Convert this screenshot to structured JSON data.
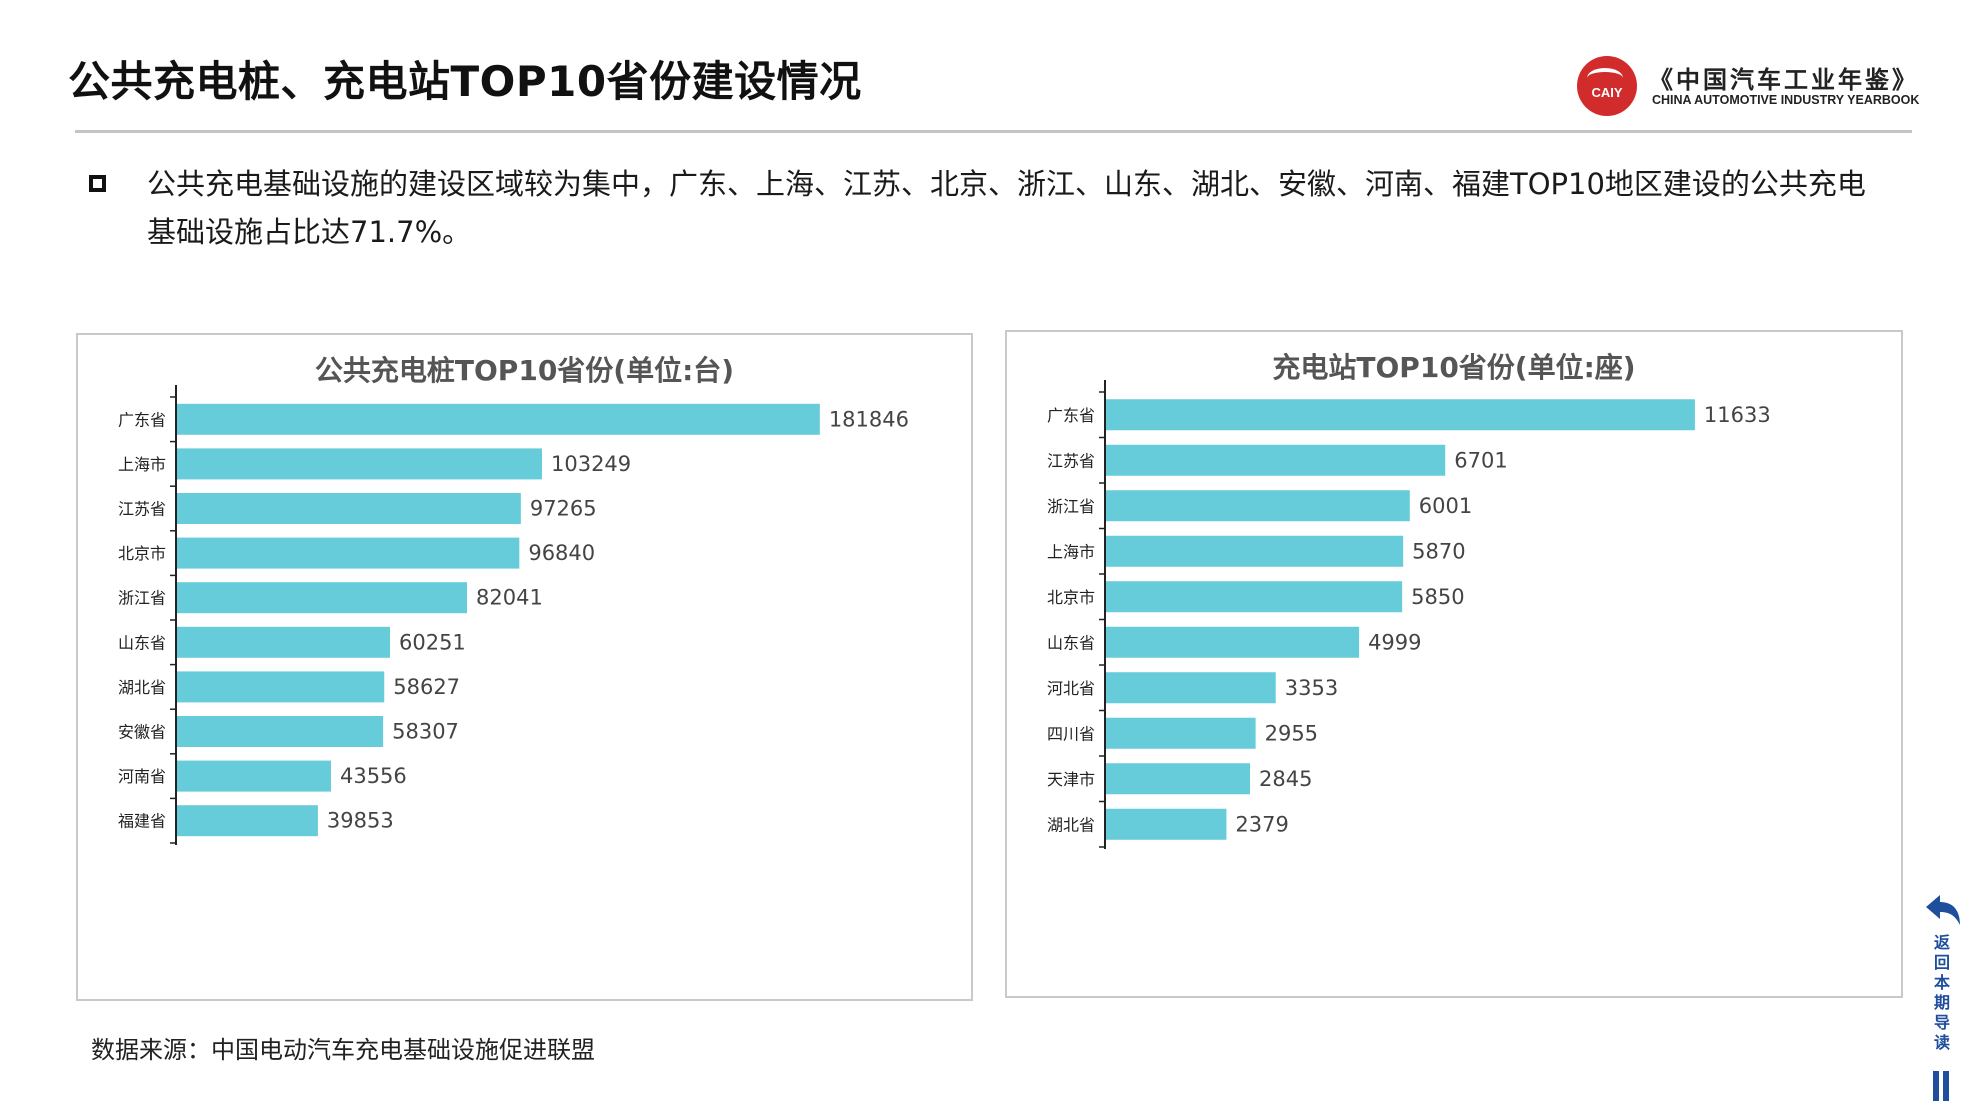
{
  "header": {
    "title": "公共充电桩、充电站TOP10省份建设情况",
    "logo": {
      "badge_text": "CAIY",
      "name_cn": "《中国汽车工业年鉴》",
      "name_en": "CHINA AUTOMOTIVE INDUSTRY YEARBOOK"
    }
  },
  "summary": {
    "text": "公共充电基础设施的建设区域较为集中，广东、上海、江苏、北京、浙江、山东、湖北、安徽、河南、福建TOP10地区建设的公共充电基础设施占比达71.7%。"
  },
  "colors": {
    "bar": "#67ccd9",
    "axis": "#222222",
    "nav": "#1f4e9c",
    "logo_red": "#d22b2b"
  },
  "chart_data": [
    {
      "type": "bar",
      "orientation": "horizontal",
      "title": "公共充电桩TOP10省份(单位:台)",
      "categories": [
        "广东省",
        "上海市",
        "江苏省",
        "北京市",
        "浙江省",
        "山东省",
        "湖北省",
        "安徽省",
        "河南省",
        "福建省"
      ],
      "values": [
        181846,
        103249,
        97265,
        96840,
        82041,
        60251,
        58627,
        58307,
        43556,
        39853
      ],
      "xlim": [
        0,
        200000
      ],
      "data_labels": true,
      "grid": false
    },
    {
      "type": "bar",
      "orientation": "horizontal",
      "title": "充电站TOP10省份(单位:座)",
      "categories": [
        "广东省",
        "江苏省",
        "浙江省",
        "上海市",
        "北京市",
        "山东省",
        "河北省",
        "四川省",
        "天津市",
        "湖北省"
      ],
      "values": [
        11633,
        6701,
        6001,
        5870,
        5850,
        4999,
        3353,
        2955,
        2845,
        2379
      ],
      "xlim": [
        0,
        12800
      ],
      "data_labels": true,
      "grid": false
    }
  ],
  "footer": {
    "source": "数据来源：中国电动汽车充电基础设施促进联盟"
  },
  "nav": {
    "label": "返回本期导读",
    "icon": "return-arrow-icon"
  }
}
